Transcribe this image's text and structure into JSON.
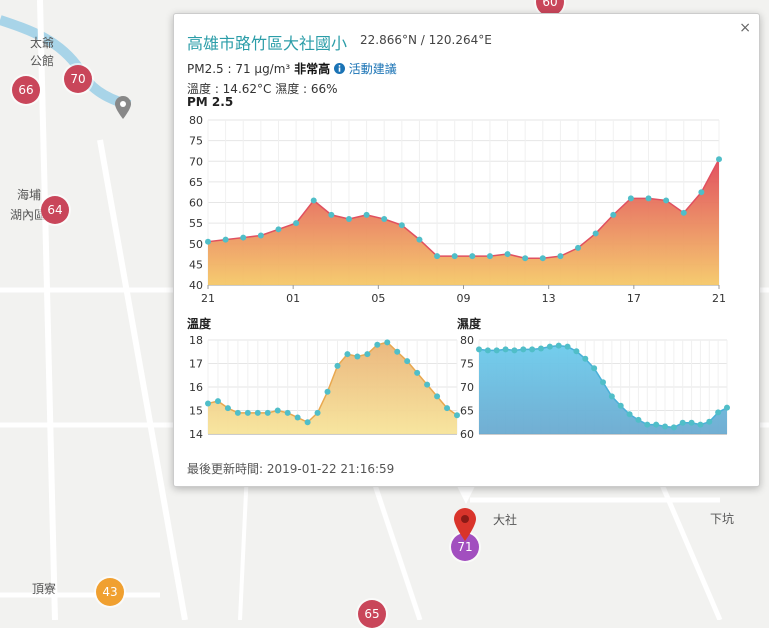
{
  "map": {
    "labels": [
      "太爺",
      "公館",
      "海埔",
      "湖內區",
      "大社",
      "下坑",
      "頂寮"
    ],
    "markers": [
      {
        "value": "66",
        "color": "#c9465a"
      },
      {
        "value": "70",
        "color": "#c9465a"
      },
      {
        "value": "64",
        "color": "#c9465a"
      },
      {
        "value": "60",
        "color": "#c9465a"
      },
      {
        "value": "71",
        "color": "#a24fbf"
      },
      {
        "value": "43",
        "color": "#f0a030"
      },
      {
        "value": "65",
        "color": "#c9465a"
      }
    ]
  },
  "popup": {
    "close": "×",
    "title": "高雄市路竹區大社國小",
    "coords": "22.866°N / 120.264°E",
    "pm_text": "PM2.5 : 71 μg/m³",
    "level": "非常高",
    "advice": "活動建議",
    "weather": "溫度 : 14.62°C 濕度 : 66%",
    "updated": "最後更新時間: 2019-01-22 21:16:59"
  },
  "chart_data": [
    {
      "type": "area",
      "title": "PM 2.5",
      "x_ticks": [
        "21",
        "01",
        "05",
        "09",
        "13",
        "17",
        "21"
      ],
      "ylim": [
        40,
        80
      ],
      "y_ticks": [
        40,
        45,
        50,
        55,
        60,
        65,
        70,
        75,
        80
      ],
      "values": [
        50.5,
        51,
        51.5,
        52,
        53.5,
        55,
        60.5,
        57,
        56,
        57,
        56,
        54.5,
        51,
        47,
        47,
        47,
        47,
        47.5,
        46.5,
        46.5,
        47,
        49,
        52.5,
        57,
        61,
        61,
        60.5,
        57.5,
        62.5,
        70.5
      ],
      "colors": {
        "line": "#e05060",
        "fill_top": "#e04858",
        "fill_bottom": "#f5c868",
        "points": "#50bec8"
      }
    },
    {
      "type": "area",
      "title": "溫度",
      "ylim": [
        14,
        18
      ],
      "y_ticks": [
        14,
        15,
        16,
        17,
        18
      ],
      "values": [
        15.3,
        15.4,
        15.1,
        14.9,
        14.9,
        14.9,
        14.9,
        15,
        14.9,
        14.7,
        14.5,
        14.9,
        15.8,
        16.9,
        17.4,
        17.3,
        17.4,
        17.8,
        17.9,
        17.5,
        17.1,
        16.6,
        16.1,
        15.6,
        15.1,
        14.8
      ],
      "colors": {
        "line": "#e8a850",
        "fill_top": "#eab478",
        "fill_bottom": "#f7e49a",
        "points": "#50bec8"
      }
    },
    {
      "type": "area",
      "title": "濕度",
      "ylim": [
        60,
        80
      ],
      "y_ticks": [
        60,
        65,
        70,
        75,
        80
      ],
      "values": [
        78,
        77.8,
        77.8,
        78,
        77.8,
        78,
        78,
        78.2,
        78.6,
        78.8,
        78.6,
        77.6,
        76,
        74,
        71,
        68,
        66,
        64.2,
        63,
        62,
        62,
        61.6,
        61.4,
        62.4,
        62.4,
        62,
        62.6,
        64.6,
        65.6
      ],
      "colors": {
        "line": "#4ab0d8",
        "fill_top": "#6ccbec",
        "fill_bottom": "#6aaad0",
        "points": "#50bec8"
      }
    }
  ]
}
